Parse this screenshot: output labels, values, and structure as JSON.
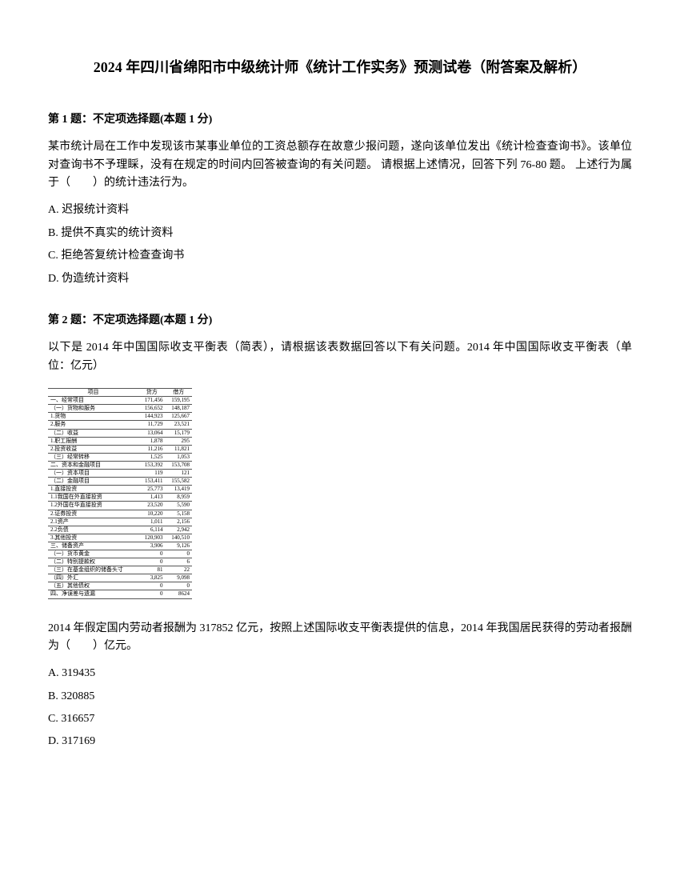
{
  "title": "2024 年四川省绵阳市中级统计师《统计工作实务》预测试卷（附答案及解析）",
  "q1": {
    "header": "第 1 题：不定项选择题(本题 1 分)",
    "stem": "某市统计局在工作中发现该市某事业单位的工资总额存在故意少报问题，遂向该单位发出《统计检查查询书》。该单位对查询书不予理睬，没有在规定的时间内回答被查询的有关问题。 请根据上述情况，回答下列 76-80 题。 上述行为属于（　　）的统计违法行为。",
    "options": {
      "a": "A. 迟报统计资料",
      "b": "B. 提供不真实的统计资料",
      "c": "C. 拒绝答复统计检查查询书",
      "d": "D. 伪造统计资料"
    }
  },
  "q2": {
    "header": "第 2 题：不定项选择题(本题 1 分)",
    "stem1": "以下是 2014 年中国国际收支平衡表（简表），请根据该表数据回答以下有关问题。2014 年中国国际收支平衡表（单位：亿元）",
    "stem2": "2014 年假定国内劳动者报酬为 317852 亿元，按照上述国际收支平衡表提供的信息，2014 年我国居民获得的劳动者报酬为（　　）亿元。",
    "options": {
      "a": "A. 319435",
      "b": "B. 320885",
      "c": "C. 316657",
      "d": "D. 317169"
    }
  },
  "table": {
    "headers": [
      "项目",
      "贷方",
      "借方"
    ],
    "rows": [
      [
        "一、经常项目",
        "171,456",
        "159,195"
      ],
      [
        "（一）货物和服务",
        "156,652",
        "148,187"
      ],
      [
        "  1.货物",
        "144,923",
        "125,667"
      ],
      [
        "  2.服务",
        "11,729",
        "23,521"
      ],
      [
        "（二）收益",
        "13,064",
        "15,179"
      ],
      [
        "  1.职工报酬",
        "1,878",
        "295"
      ],
      [
        "  2.投资收益",
        "11,216",
        "11,821"
      ],
      [
        "（三）经常转移",
        "1,525",
        "1,053"
      ],
      [
        "二、资本和金融项目",
        "153,392",
        "153,708"
      ],
      [
        "（一）资本项目",
        "119",
        "121"
      ],
      [
        "（二）金融项目",
        "153,411",
        "155,582"
      ],
      [
        "  1.直接投资",
        "25,773",
        "13,419"
      ],
      [
        "   1.1我国在外直接投资",
        "1,413",
        "8,959"
      ],
      [
        "   1.2外国在华直接投资",
        "23,520",
        "5,590"
      ],
      [
        "  2.证券投资",
        "10,220",
        "5,158"
      ],
      [
        "   2.1资产",
        "1,011",
        "2,156"
      ],
      [
        "   2.2负债",
        "6,114",
        "2,942"
      ],
      [
        "  3.其他投资",
        "120,903",
        "140,510"
      ],
      [
        "三、储备资产",
        "3,906",
        "9,126"
      ],
      [
        "（一）货币黄金",
        "0",
        "0"
      ],
      [
        "（二）特别提款权",
        "0",
        "6"
      ],
      [
        "（三）在基金组织的储备头寸",
        "81",
        "22"
      ],
      [
        "（四）外汇",
        "3,825",
        "9,098"
      ],
      [
        "（五）其他债权",
        "0",
        "0"
      ],
      [
        "四、净误差与遗漏",
        "0",
        "8624"
      ]
    ]
  }
}
